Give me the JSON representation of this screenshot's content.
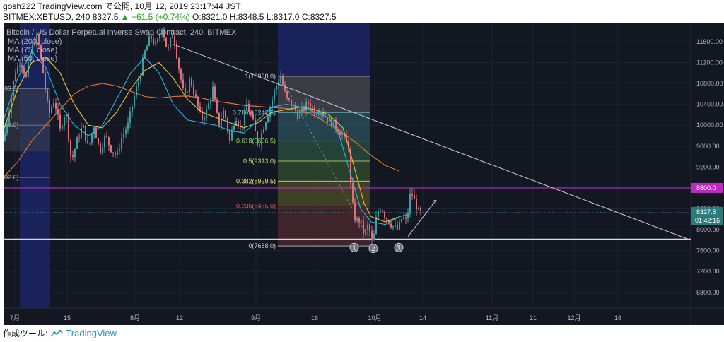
{
  "header": {
    "line1": "gosh222 TradingView.com で公開, 10月 12, 2019 23:17:44 JST",
    "line2_prefix": "BITMEX:XBTUSD, 240 8327.5",
    "line2_change": "▲ +61.5 (+0.74%)",
    "line2_ohlc": "O:8321.0 H:8348.5 L:8317.0 C:8327.5"
  },
  "legend": {
    "title": "Bitcoin / US Dollar Perpetual Inverse Swap Contract, 240, BITMEX",
    "ma200": "MA (200, close)",
    "ma75": "MA (75, close)",
    "ma50": "MA (50, close)"
  },
  "footer": {
    "label": "作成ツール:",
    "brand": "TradingView"
  },
  "colors": {
    "background": "#131722",
    "candle_up": "#3e9fa0",
    "candle_down": "#e36d7a",
    "ma200": "#e8772e",
    "ma75": "#e6c740",
    "ma50": "#2fb5d9",
    "resistance": "#c227c2",
    "price_tag": "#2a7b7b"
  },
  "chart_data": {
    "type": "candlestick",
    "symbol": "BITMEX:XBTUSD",
    "timeframe": "240",
    "x_ticks": [
      "7月",
      "15",
      "8月",
      "12",
      "9月",
      "16",
      "10月",
      "14",
      "11月",
      "21",
      "12月",
      "16"
    ],
    "y_ticks": [
      11600,
      11200,
      10800,
      10400,
      10000,
      9600,
      9200,
      8800,
      8400,
      8000,
      7600,
      7200,
      6800
    ],
    "ylim": [
      6500,
      11950
    ],
    "fibonacci": [
      {
        "label": "1(10938.0)",
        "ratio": 1,
        "price": 10938.0
      },
      {
        "label": "0.786(10242.5)",
        "ratio": 0.786,
        "price": 10242.5
      },
      {
        "label": "0.618(9696.5)",
        "ratio": 0.618,
        "price": 9696.5
      },
      {
        "label": "0.5(9313.0)",
        "ratio": 0.5,
        "price": 9313.0
      },
      {
        "label": "0.382(8929.5)",
        "ratio": 0.382,
        "price": 8929.5
      },
      {
        "label": "0.236(8455.0)",
        "ratio": 0.236,
        "price": 8455.0
      },
      {
        "label": "0(7688.0)",
        "ratio": 0,
        "price": 7688.0
      }
    ],
    "left_fib_labels": [
      "33.0)",
      "16.0)",
      "02.0)"
    ],
    "resistance_label": "8800.0",
    "resistance_price": 8800.0,
    "support_price": 7820,
    "last_price_label": "8327.5",
    "last_price": 8327.5,
    "countdown_label": "01:42:16",
    "markers": [
      "1",
      "2",
      "3"
    ],
    "ma200": [
      [
        0,
        9000
      ],
      [
        20,
        9300
      ],
      [
        40,
        9700
      ],
      [
        60,
        10000
      ],
      [
        80,
        10300
      ],
      [
        100,
        10600
      ],
      [
        120,
        10750
      ],
      [
        140,
        10800
      ],
      [
        160,
        10750
      ],
      [
        180,
        10650
      ],
      [
        200,
        10550
      ],
      [
        220,
        10520
      ],
      [
        240,
        10550
      ],
      [
        260,
        10560
      ],
      [
        280,
        10520
      ],
      [
        300,
        10460
      ],
      [
        320,
        10420
      ],
      [
        340,
        10380
      ],
      [
        360,
        10360
      ],
      [
        380,
        10340
      ],
      [
        400,
        10320
      ],
      [
        420,
        10280
      ],
      [
        440,
        10180
      ],
      [
        460,
        10020
      ],
      [
        480,
        9850
      ],
      [
        500,
        9650
      ],
      [
        520,
        9420
      ],
      [
        540,
        9230
      ],
      [
        560,
        9120
      ]
    ],
    "ma75": [
      [
        0,
        9900
      ],
      [
        20,
        10700
      ],
      [
        40,
        11200
      ],
      [
        60,
        11300
      ],
      [
        80,
        11000
      ],
      [
        100,
        10400
      ],
      [
        120,
        10000
      ],
      [
        140,
        9950
      ],
      [
        160,
        10250
      ],
      [
        180,
        10700
      ],
      [
        200,
        11050
      ],
      [
        220,
        11200
      ],
      [
        240,
        10900
      ],
      [
        260,
        10500
      ],
      [
        280,
        10250
      ],
      [
        300,
        10150
      ],
      [
        320,
        10050
      ],
      [
        340,
        9950
      ],
      [
        360,
        10050
      ],
      [
        380,
        10250
      ],
      [
        400,
        10300
      ],
      [
        420,
        10350
      ],
      [
        440,
        10300
      ],
      [
        460,
        10200
      ],
      [
        480,
        9950
      ],
      [
        490,
        9500
      ],
      [
        500,
        9000
      ],
      [
        510,
        8500
      ],
      [
        520,
        8250
      ],
      [
        540,
        8150
      ],
      [
        560,
        8250
      ]
    ],
    "ma50": [
      [
        0,
        10100
      ],
      [
        20,
        10900
      ],
      [
        40,
        11400
      ],
      [
        60,
        11100
      ],
      [
        80,
        10400
      ],
      [
        100,
        10000
      ],
      [
        120,
        9800
      ],
      [
        140,
        10000
      ],
      [
        160,
        10500
      ],
      [
        180,
        11000
      ],
      [
        200,
        11300
      ],
      [
        220,
        11000
      ],
      [
        240,
        10400
      ],
      [
        260,
        10100
      ],
      [
        280,
        10050
      ],
      [
        300,
        10000
      ],
      [
        320,
        9900
      ],
      [
        340,
        9850
      ],
      [
        360,
        10100
      ],
      [
        380,
        10350
      ],
      [
        400,
        10400
      ],
      [
        420,
        10350
      ],
      [
        440,
        10250
      ],
      [
        460,
        10150
      ],
      [
        475,
        9800
      ],
      [
        490,
        9100
      ],
      [
        505,
        8400
      ],
      [
        520,
        8150
      ],
      [
        540,
        8100
      ],
      [
        560,
        8250
      ],
      [
        575,
        8300
      ]
    ],
    "price_path": [
      [
        0,
        9700
      ],
      [
        8,
        10300
      ],
      [
        16,
        11000
      ],
      [
        24,
        11250
      ],
      [
        32,
        10900
      ],
      [
        40,
        11500
      ],
      [
        48,
        11700
      ],
      [
        56,
        11000
      ],
      [
        64,
        10200
      ],
      [
        72,
        10500
      ],
      [
        80,
        9900
      ],
      [
        88,
        10300
      ],
      [
        96,
        9300
      ],
      [
        104,
        9700
      ],
      [
        112,
        10000
      ],
      [
        120,
        9550
      ],
      [
        128,
        10000
      ],
      [
        136,
        9500
      ],
      [
        144,
        9800
      ],
      [
        152,
        9550
      ],
      [
        160,
        9400
      ],
      [
        168,
        9800
      ],
      [
        176,
        10000
      ],
      [
        184,
        10500
      ],
      [
        192,
        10900
      ],
      [
        200,
        11400
      ],
      [
        208,
        11700
      ],
      [
        216,
        11500
      ],
      [
        224,
        11900
      ],
      [
        232,
        11400
      ],
      [
        240,
        11800
      ],
      [
        248,
        11100
      ],
      [
        256,
        10500
      ],
      [
        264,
        10900
      ],
      [
        272,
        10500
      ],
      [
        280,
        10100
      ],
      [
        288,
        10300
      ],
      [
        296,
        10700
      ],
      [
        304,
        10000
      ],
      [
        312,
        10300
      ],
      [
        320,
        9700
      ],
      [
        328,
        10200
      ],
      [
        336,
        9900
      ],
      [
        344,
        10400
      ],
      [
        352,
        10100
      ],
      [
        360,
        9600
      ],
      [
        368,
        10000
      ],
      [
        376,
        10300
      ],
      [
        384,
        10700
      ],
      [
        392,
        10938
      ],
      [
        400,
        10500
      ],
      [
        408,
        10400
      ],
      [
        416,
        10200
      ],
      [
        424,
        10300
      ],
      [
        432,
        10450
      ],
      [
        440,
        10250
      ],
      [
        448,
        10300
      ],
      [
        456,
        10150
      ],
      [
        464,
        10050
      ],
      [
        472,
        9950
      ],
      [
        480,
        9800
      ],
      [
        488,
        9600
      ],
      [
        492,
        8600
      ],
      [
        498,
        8150
      ],
      [
        504,
        8200
      ],
      [
        510,
        7900
      ],
      [
        516,
        8100
      ],
      [
        522,
        7688
      ],
      [
        528,
        8300
      ],
      [
        534,
        8450
      ],
      [
        540,
        8250
      ],
      [
        546,
        8150
      ],
      [
        552,
        8050
      ],
      [
        558,
        8000
      ],
      [
        564,
        8250
      ],
      [
        570,
        8150
      ],
      [
        576,
        8750
      ],
      [
        580,
        8600
      ],
      [
        584,
        8450
      ],
      [
        588,
        8300
      ],
      [
        592,
        8327
      ]
    ]
  }
}
